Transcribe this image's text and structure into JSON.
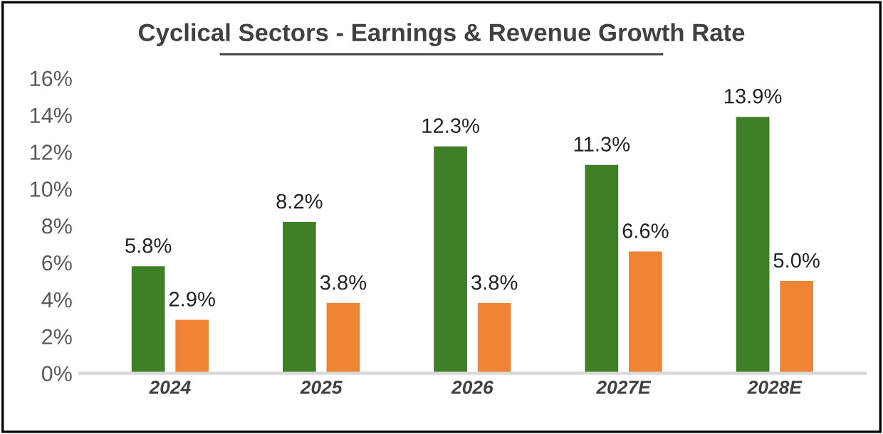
{
  "chart_data": {
    "type": "bar",
    "title": "Cyclical Sectors - Earnings & Revenue Growth Rate",
    "categories": [
      "2024",
      "2025",
      "2026",
      "2027E",
      "2028E"
    ],
    "series": [
      {
        "color": "#3f7f26",
        "values": [
          5.8,
          8.2,
          12.3,
          11.3,
          13.9
        ],
        "value_labels": [
          "5.8%",
          "8.2%",
          "12.3%",
          "11.3%",
          "13.9%"
        ]
      },
      {
        "color": "#ef8534",
        "values": [
          2.9,
          3.8,
          3.8,
          6.6,
          5.0
        ],
        "value_labels": [
          "2.9%",
          "3.8%",
          "3.8%",
          "6.6%",
          "5.0%"
        ]
      }
    ],
    "ylim": [
      0,
      16
    ],
    "yticks": [
      {
        "value": 0,
        "label": "0%"
      },
      {
        "value": 2,
        "label": "2%"
      },
      {
        "value": 4,
        "label": "4%"
      },
      {
        "value": 6,
        "label": "6%"
      },
      {
        "value": 8,
        "label": "8%"
      },
      {
        "value": 10,
        "label": "10%"
      },
      {
        "value": 12,
        "label": "12%"
      },
      {
        "value": 14,
        "label": "14%"
      },
      {
        "value": 16,
        "label": "16%"
      }
    ],
    "grid": false,
    "legend": false
  }
}
